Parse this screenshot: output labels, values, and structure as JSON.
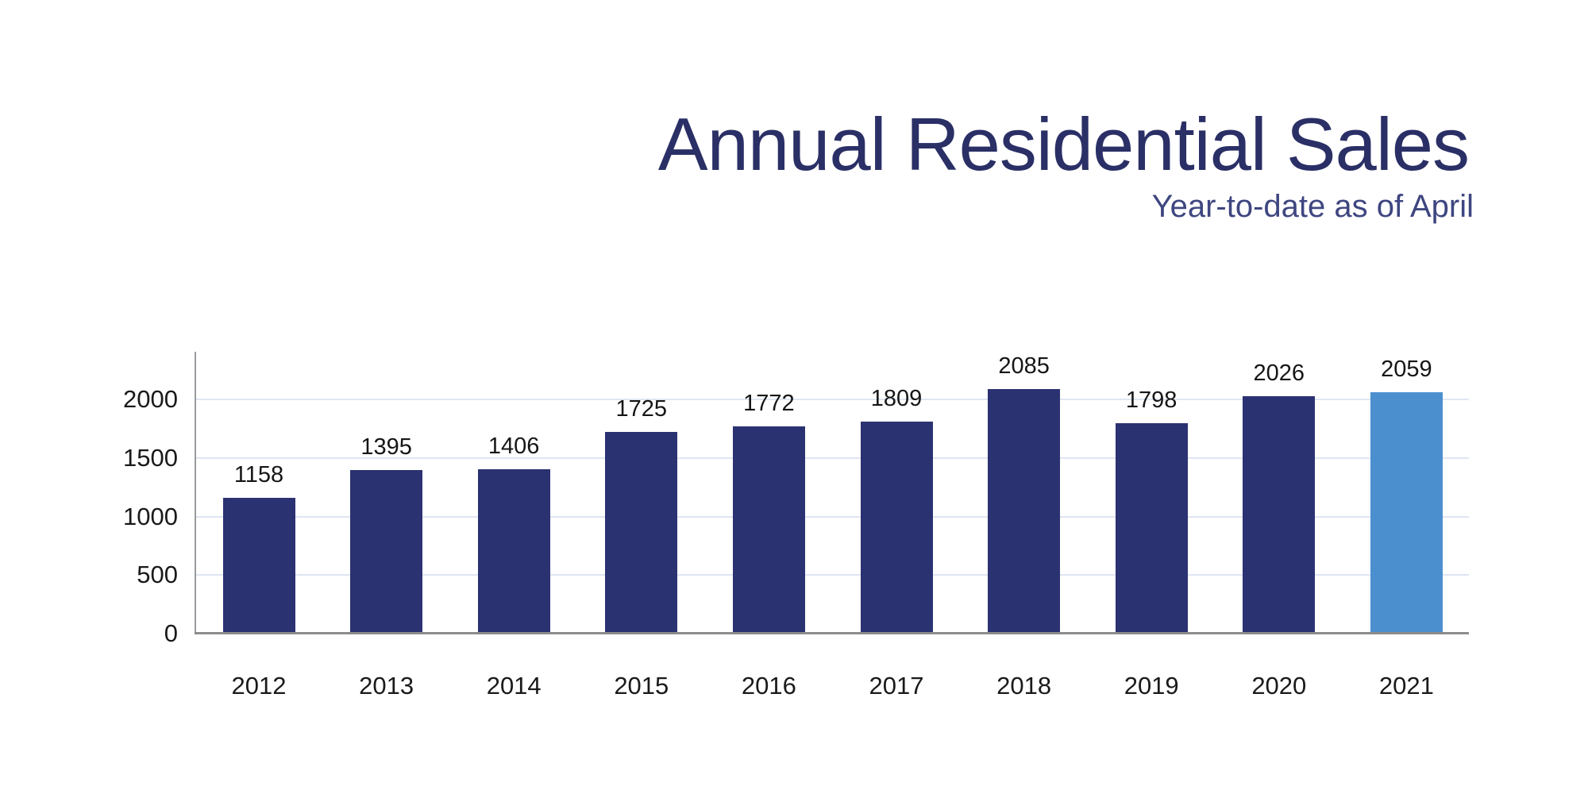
{
  "header": {
    "title": "Annual Residential Sales",
    "subtitle": "Year-to-date as of April",
    "title_color": "#2a2f66",
    "subtitle_color": "#3e4680"
  },
  "chart_data": {
    "type": "bar",
    "title": "Annual Residential Sales",
    "subtitle": "Year-to-date as of April",
    "categories": [
      "2012",
      "2013",
      "2014",
      "2015",
      "2016",
      "2017",
      "2018",
      "2019",
      "2020",
      "2021"
    ],
    "values": [
      1158,
      1395,
      1406,
      1725,
      1772,
      1809,
      2085,
      1798,
      2026,
      2059
    ],
    "value_labels_shown": true,
    "xlabel": "",
    "ylabel": "",
    "ylim": [
      0,
      2400
    ],
    "yticks": [
      0,
      500,
      1000,
      1500,
      2000
    ],
    "grid": true,
    "legend": false,
    "bar_color": "#2b3272",
    "highlight_color": "#4c8fce",
    "highlight_category": "2021",
    "highlight_index": 9,
    "gridline_color": "#dfe5f2",
    "axis_line_color": "#8c8c8c"
  }
}
